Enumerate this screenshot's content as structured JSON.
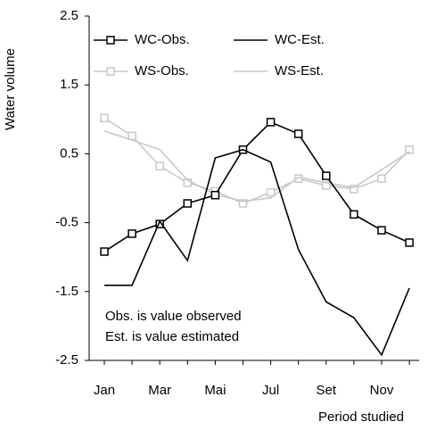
{
  "chart_data": {
    "type": "line",
    "x_label": "Period studied",
    "y_label": "Water volume",
    "categories": [
      "Jan",
      null,
      "Mar",
      null,
      "Mai",
      null,
      "Jul",
      null,
      "Set",
      null,
      "Nov",
      null
    ],
    "series": [
      {
        "name": "WC-Obs.",
        "color": "#000000",
        "marker": "square",
        "values": [
          -0.92,
          -0.66,
          -0.52,
          -0.22,
          -0.1,
          0.56,
          0.96,
          0.79,
          0.18,
          -0.38,
          -0.61,
          -0.79
        ]
      },
      {
        "name": "WC-Est.",
        "color": "#000000",
        "marker": null,
        "values": [
          -1.41,
          -1.41,
          -0.48,
          -1.05,
          0.44,
          0.56,
          0.38,
          -0.89,
          -1.65,
          -1.88,
          -2.42,
          -1.45
        ]
      },
      {
        "name": "WS-Obs.",
        "color": "#c8c8c8",
        "marker": "square",
        "values": [
          1.02,
          0.76,
          0.32,
          0.08,
          -0.04,
          -0.22,
          -0.06,
          0.14,
          0.04,
          -0.01,
          0.14,
          0.56
        ]
      },
      {
        "name": "WS-Est.",
        "color": "#c8c8c8",
        "marker": null,
        "values": [
          0.83,
          0.7,
          0.56,
          0.12,
          -0.09,
          -0.19,
          -0.14,
          0.16,
          0.08,
          0.01,
          0.27,
          0.53
        ]
      }
    ],
    "ylim": [
      -2.5,
      2.5
    ],
    "yticks": [
      -2.5,
      -1.5,
      -0.5,
      0.5,
      1.5,
      2.5
    ],
    "annotations": [
      "Obs. is value observed",
      "Est. is value estimated"
    ],
    "grid": false,
    "legend": "top"
  }
}
